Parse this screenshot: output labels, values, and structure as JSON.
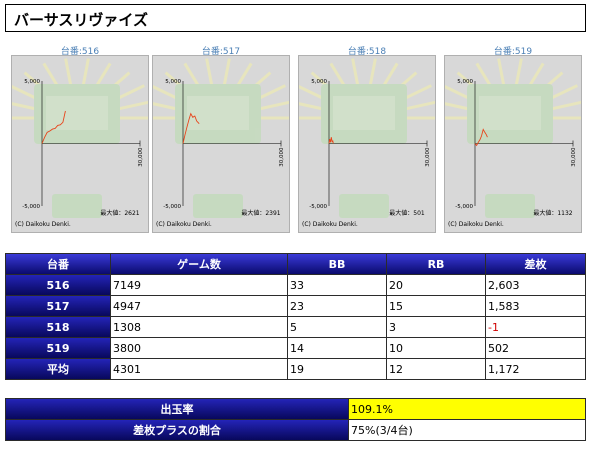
{
  "title": "バーサスリヴァイズ",
  "machines": [
    {
      "label": "台番:516",
      "max_label": "最大値：2621",
      "copyright": "(C) Daikoku Denki.",
      "y_ticks": [
        "5,000",
        "-5,000"
      ],
      "x_tick": "30,000"
    },
    {
      "label": "台番:517",
      "max_label": "最大値：2391",
      "copyright": "(C) Daikoku Denki.",
      "y_ticks": [
        "5,000",
        "-5,000"
      ],
      "x_tick": "30,000"
    },
    {
      "label": "台番:518",
      "max_label": "最大値：501",
      "copyright": "(C) Daikoku Denki.",
      "y_ticks": [
        "5,000",
        "-5,000"
      ],
      "x_tick": "30,000"
    },
    {
      "label": "台番:519",
      "max_label": "最大値：1132",
      "copyright": "(C) Daikoku Denki.",
      "y_ticks": [
        "5,000",
        "-5,000"
      ],
      "x_tick": "30,000"
    }
  ],
  "chart_data": [
    {
      "type": "line",
      "ylim": [
        -5000,
        5000
      ],
      "xlim": [
        0,
        30000
      ],
      "x": [
        0,
        800,
        1600,
        2400,
        3200,
        4000,
        4800,
        5600,
        6400,
        7149
      ],
      "y": [
        0,
        500,
        900,
        1000,
        1150,
        1200,
        1450,
        1500,
        1700,
        2603
      ]
    },
    {
      "type": "line",
      "ylim": [
        -5000,
        5000
      ],
      "xlim": [
        0,
        30000
      ],
      "x": [
        0,
        600,
        1200,
        1800,
        2400,
        3000,
        3600,
        4200,
        4947
      ],
      "y": [
        0,
        700,
        1300,
        1900,
        2391,
        2100,
        2200,
        1800,
        1583
      ]
    },
    {
      "type": "line",
      "ylim": [
        -5000,
        5000
      ],
      "xlim": [
        0,
        30000
      ],
      "x": [
        0,
        200,
        450,
        700,
        950,
        1150,
        1308
      ],
      "y": [
        0,
        350,
        100,
        501,
        150,
        200,
        -1
      ]
    },
    {
      "type": "line",
      "ylim": [
        -5000,
        5000
      ],
      "xlim": [
        0,
        30000
      ],
      "x": [
        0,
        500,
        1000,
        1500,
        2000,
        2500,
        3000,
        3500,
        3800
      ],
      "y": [
        0,
        -150,
        100,
        300,
        600,
        1132,
        900,
        700,
        502
      ]
    }
  ],
  "table": {
    "headers": [
      "台番",
      "ゲーム数",
      "BB",
      "RB",
      "差枚"
    ],
    "rows": [
      [
        "516",
        "7149",
        "33",
        "20",
        "2,603"
      ],
      [
        "517",
        "4947",
        "23",
        "15",
        "1,583"
      ],
      [
        "518",
        "1308",
        "5",
        "3",
        "-1"
      ],
      [
        "519",
        "3800",
        "14",
        "10",
        "502"
      ],
      [
        "平均",
        "4301",
        "19",
        "12",
        "1,172"
      ]
    ]
  },
  "summary": [
    {
      "label": "出玉率",
      "value": "109.1%"
    },
    {
      "label": "差枚プラスの割合",
      "value": "75%(3/4台)"
    }
  ],
  "colors": {
    "line": "#e8431a",
    "header_blue": "#0a0a6e",
    "highlight": "#ffff00",
    "negative": "#d00000"
  }
}
